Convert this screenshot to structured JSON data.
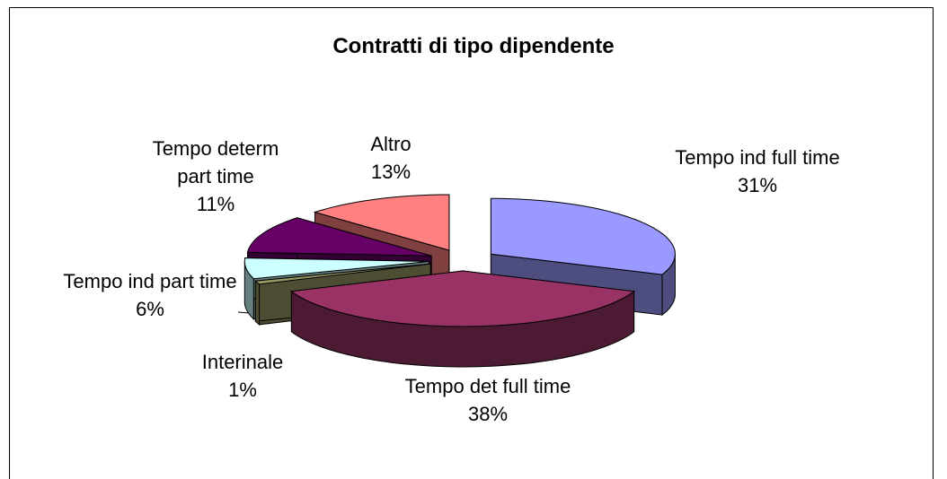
{
  "chart_data": {
    "type": "pie",
    "title": "Contratti di tipo dipendente",
    "categories": [
      "Tempo ind full time",
      "Tempo det full time",
      "Interinale",
      "Tempo ind part time",
      "Tempo determ part time",
      "Altro"
    ],
    "values": [
      31,
      38,
      1,
      6,
      11,
      13
    ],
    "value_labels": [
      "31%",
      "38%",
      "1%",
      "6%",
      "11%",
      "13%"
    ],
    "colors": [
      "#9999ff",
      "#993366",
      "#999966",
      "#ccffff",
      "#660066",
      "#ff8080"
    ]
  }
}
